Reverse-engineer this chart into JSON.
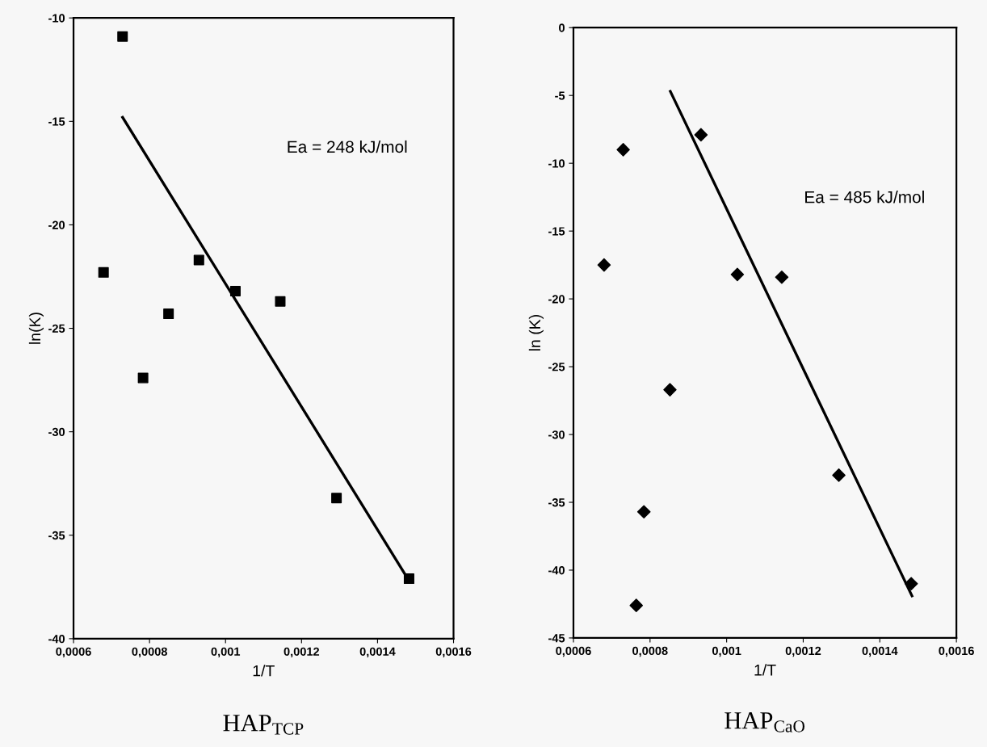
{
  "chart_data": [
    {
      "type": "scatter",
      "title": "HAP$_{TCP}$",
      "xlabel": "1/T",
      "ylabel": "ln(K)",
      "annotations": [
        "Ea = 248 kJ/mol"
      ],
      "xlim": [
        0.0006,
        0.0016
      ],
      "xticks": [
        {
          "value": 0.0006,
          "label": "0,0006"
        },
        {
          "value": 0.0008,
          "label": "0,0008"
        },
        {
          "value": 0.001,
          "label": "0,001"
        },
        {
          "value": 0.0012,
          "label": "0,0012"
        },
        {
          "value": 0.0014,
          "label": "0,0014"
        },
        {
          "value": 0.0016,
          "label": "0,0016"
        }
      ],
      "ylim": [
        -40,
        -10
      ],
      "yticks": [
        -40,
        -35,
        -30,
        -25,
        -20,
        -15,
        -10
      ],
      "grid": false,
      "legend": false,
      "series": [
        {
          "marker": "square",
          "color": "#000000",
          "x": [
            0.000729,
            0.000679,
            0.00085,
            0.00093,
            0.001026,
            0.001144,
            0.000783,
            0.001292,
            0.001483
          ],
          "values": [
            -10.9,
            -22.3,
            -24.3,
            -21.7,
            -23.2,
            -23.7,
            -27.4,
            -33.2,
            -37.1
          ]
        },
        {
          "type": "line",
          "marker": "none",
          "line_style": "solid",
          "color": "#000000",
          "x": [
            0.000729,
            0.001483
          ],
          "values": [
            -14.8,
            -37.2
          ]
        }
      ]
    },
    {
      "type": "scatter",
      "title": "HAP$_{CaO}$",
      "xlabel": "1/T",
      "ylabel": "ln (K)",
      "annotations": [
        "Ea = 485 kJ/mol"
      ],
      "xlim": [
        0.0006,
        0.0016
      ],
      "xticks": [
        {
          "value": 0.0006,
          "label": "0,0006"
        },
        {
          "value": 0.0008,
          "label": "0,0008"
        },
        {
          "value": 0.001,
          "label": "0,001"
        },
        {
          "value": 0.0012,
          "label": "0,0012"
        },
        {
          "value": 0.0014,
          "label": "0,0014"
        },
        {
          "value": 0.0016,
          "label": "0,0016"
        }
      ],
      "ylim": [
        -45,
        0
      ],
      "yticks": [
        -45,
        -40,
        -35,
        -30,
        -25,
        -20,
        -15,
        -10,
        -5,
        0
      ],
      "grid": false,
      "legend": false,
      "series": [
        {
          "marker": "diamond",
          "color": "#000000",
          "x": [
            0.00073,
            0.00068,
            0.000933,
            0.001028,
            0.001144,
            0.000852,
            0.000784,
            0.000764,
            0.001293,
            0.001482
          ],
          "values": [
            -9.0,
            -17.5,
            -7.9,
            -18.2,
            -18.4,
            -26.7,
            -35.7,
            -42.6,
            -33.0,
            -41.0
          ]
        },
        {
          "type": "line",
          "marker": "none",
          "line_style": "solid",
          "color": "#000000",
          "x": [
            0.000853,
            0.001484
          ],
          "values": [
            -4.7,
            -41.9
          ]
        }
      ]
    }
  ]
}
